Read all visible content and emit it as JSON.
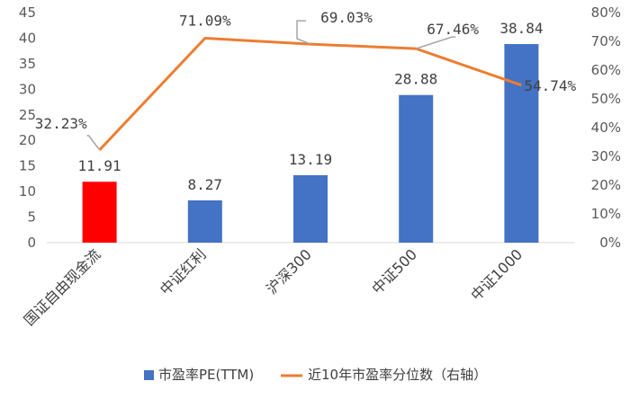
{
  "chart_data": {
    "type": "bar",
    "categories": [
      "国证自由现金流",
      "中证红利",
      "沪深300",
      "中证500",
      "中证1000"
    ],
    "series": [
      {
        "name": "市盈率PE(TTM)",
        "type": "bar",
        "axis": "left",
        "values": [
          11.91,
          8.27,
          13.19,
          28.88,
          38.84
        ],
        "labels": [
          "11.91",
          "8.27",
          "13.19",
          "28.88",
          "38.84"
        ],
        "colors": [
          "#ff0000",
          "#4472c4",
          "#4472c4",
          "#4472c4",
          "#4472c4"
        ]
      },
      {
        "name": "近10年市盈率分位数（右轴）",
        "type": "line",
        "axis": "right",
        "values": [
          32.23,
          71.09,
          69.03,
          67.46,
          54.74
        ],
        "labels": [
          "32.23%",
          "71.09%",
          "69.03%",
          "67.46%",
          "54.74%"
        ],
        "color": "#ed7d31"
      }
    ],
    "y_left": {
      "min": 0,
      "max": 45,
      "step": 5,
      "ticks": [
        "0",
        "5",
        "10",
        "15",
        "20",
        "25",
        "30",
        "35",
        "40",
        "45"
      ]
    },
    "y_right": {
      "min": 0,
      "max": 80,
      "step": 10,
      "ticks": [
        "0%",
        "10%",
        "20%",
        "30%",
        "40%",
        "50%",
        "60%",
        "70%",
        "80%"
      ]
    },
    "grid": false,
    "legend": "bottom",
    "colors": {
      "bar": "#4472c4",
      "highlight_bar": "#ff0000",
      "line": "#ed7d31",
      "leader": "#a6a6a6"
    }
  }
}
